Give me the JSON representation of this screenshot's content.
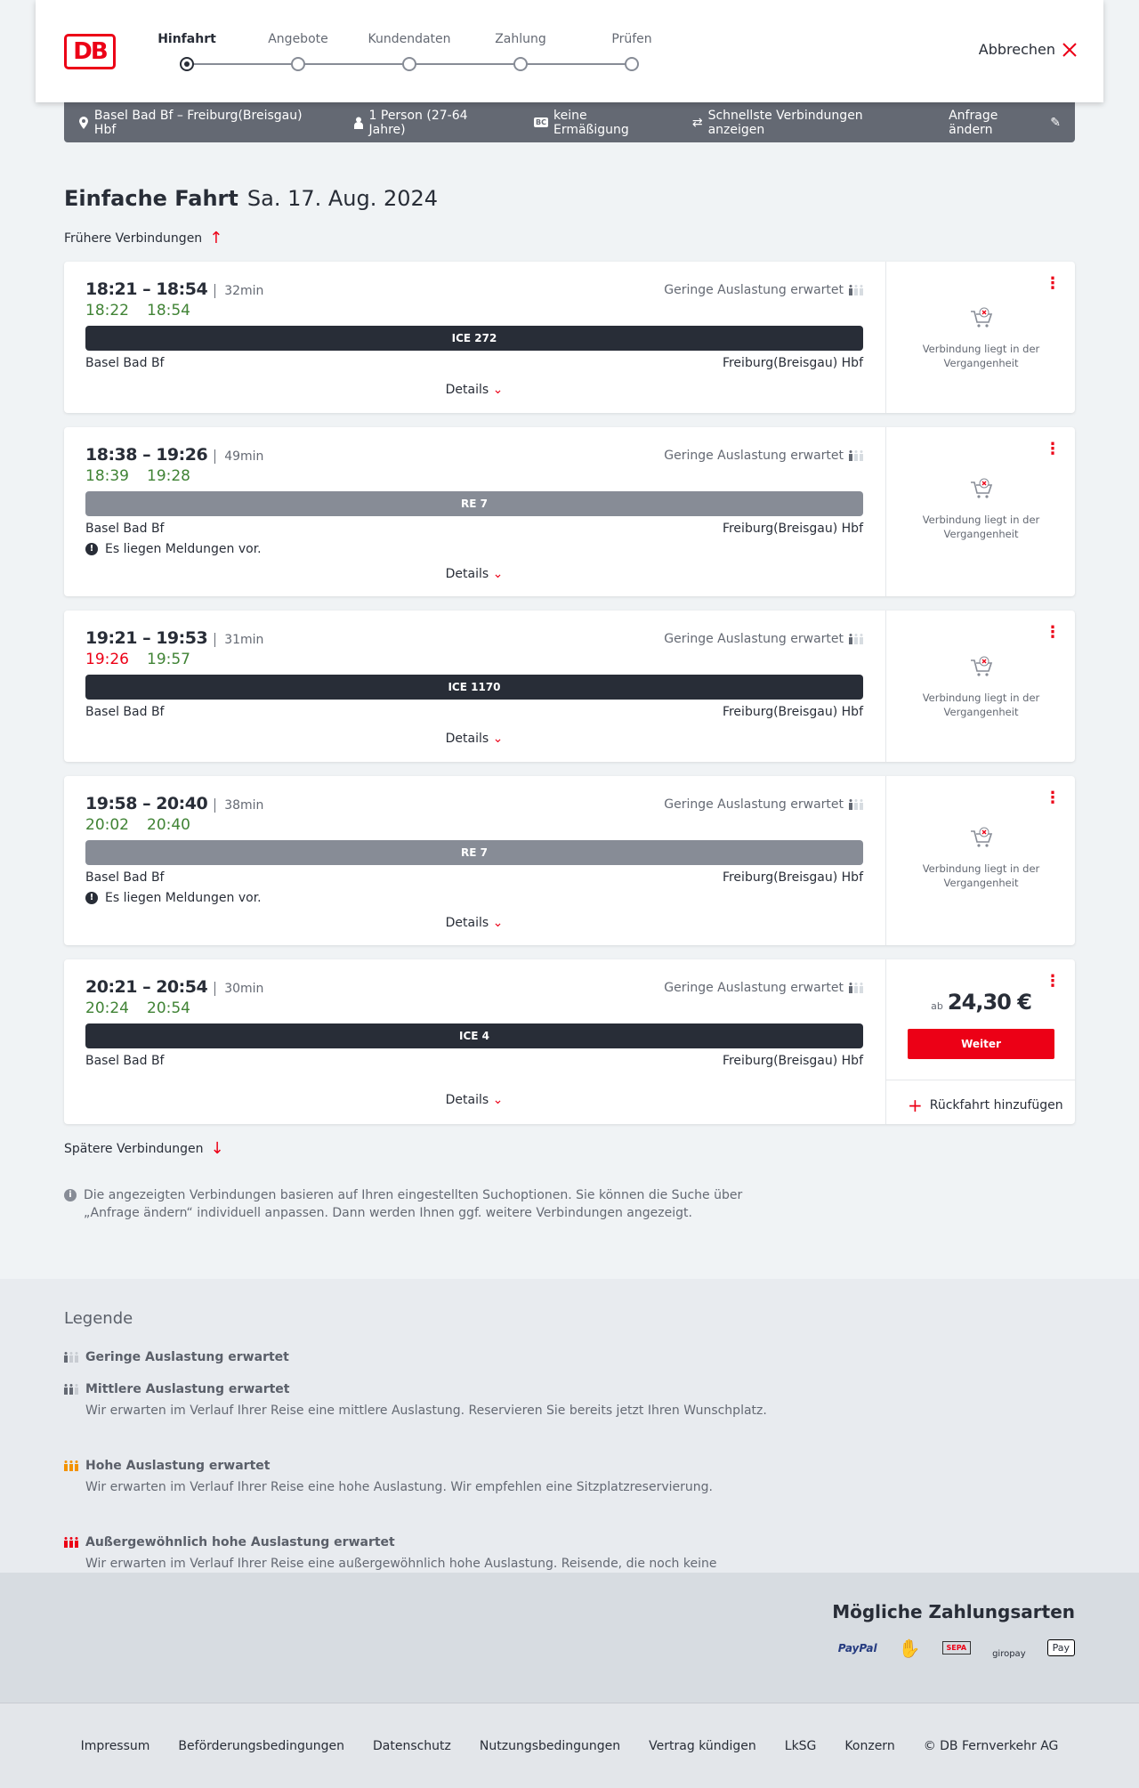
{
  "header": {
    "logo": "DB",
    "steps": [
      "Hinfahrt",
      "Angebote",
      "Kundendaten",
      "Zahlung",
      "Prüfen"
    ],
    "active_step": 0,
    "cancel": "Abbrechen"
  },
  "search": {
    "route": "Basel Bad Bf – Freiburg(Breisgau) Hbf",
    "passengers": "1 Person (27-64 Jahre)",
    "discount": "keine Ermäßigung",
    "option": "Schnellste Verbindungen anzeigen",
    "edit": "Anfrage ändern"
  },
  "page": {
    "title": "Einfache Fahrt",
    "date": "Sa. 17. Aug. 2024",
    "earlier": "Frühere Verbindungen",
    "later": "Spätere Verbindungen",
    "info": "Die angezeigten Verbindungen basieren auf Ihren eingestellten Suchoptionen. Sie können die Suche über „Anfrage ändern“ individuell anpassen. Dann werden Ihnen ggf. weitere Verbindungen angezeigt."
  },
  "colors": {
    "brand": "#ec0016",
    "ontime": "#408335",
    "ice": "#282d37",
    "regional": "#878c96"
  },
  "connections": [
    {
      "times": "18:21 – 18:54",
      "duration": "32min",
      "rt_dep": "18:22",
      "rt_arr": "18:54",
      "dep_late": false,
      "load": "Geringe Auslastung erwartet",
      "train": "ICE 272",
      "type": "ice",
      "from": "Basel Bad Bf",
      "to": "Freiburg(Breisgau) Hbf",
      "details": "Details",
      "past": "Verbindung liegt in der Vergangenheit"
    },
    {
      "times": "18:38 – 19:26",
      "duration": "49min",
      "rt_dep": "18:39",
      "rt_arr": "19:28",
      "dep_late": false,
      "load": "Geringe Auslastung erwartet",
      "train": "RE 7",
      "type": "regional",
      "from": "Basel Bad Bf",
      "to": "Freiburg(Breisgau) Hbf",
      "message": "Es liegen Meldungen vor.",
      "details": "Details",
      "past": "Verbindung liegt in der Vergangenheit"
    },
    {
      "times": "19:21 – 19:53",
      "duration": "31min",
      "rt_dep": "19:26",
      "rt_arr": "19:57",
      "dep_late": true,
      "load": "Geringe Auslastung erwartet",
      "train": "ICE 1170",
      "type": "ice",
      "from": "Basel Bad Bf",
      "to": "Freiburg(Breisgau) Hbf",
      "details": "Details",
      "past": "Verbindung liegt in der Vergangenheit"
    },
    {
      "times": "19:58 – 20:40",
      "duration": "38min",
      "rt_dep": "20:02",
      "rt_arr": "20:40",
      "dep_late": false,
      "load": "Geringe Auslastung erwartet",
      "train": "RE 7",
      "type": "regional",
      "from": "Basel Bad Bf",
      "to": "Freiburg(Breisgau) Hbf",
      "message": "Es liegen Meldungen vor.",
      "details": "Details",
      "past": "Verbindung liegt in der Vergangenheit"
    },
    {
      "times": "20:21 – 20:54",
      "duration": "30min",
      "rt_dep": "20:24",
      "rt_arr": "20:54",
      "dep_late": false,
      "load": "Geringe Auslastung erwartet",
      "train": "ICE 4",
      "type": "ice",
      "from": "Basel Bad Bf",
      "to": "Freiburg(Breisgau) Hbf",
      "details": "Details",
      "price_prefix": "ab",
      "price": "24,30 €",
      "button": "Weiter",
      "return": "Rückfahrt hinzufügen"
    }
  ],
  "legend": {
    "title": "Legende",
    "items": [
      {
        "title": "Geringe Auslastung erwartet",
        "icon": "load-low-icon"
      },
      {
        "title": "Mittlere Auslastung erwartet",
        "desc": "Wir erwarten im Verlauf Ihrer Reise eine mittlere Auslastung. Reservieren Sie bereits jetzt Ihren Wunschplatz.",
        "icon": "load-medium-icon"
      },
      {
        "title": "Hohe Auslastung erwartet",
        "desc": "Wir erwarten im Verlauf Ihrer Reise eine hohe Auslastung. Wir empfehlen eine Sitzplatzreservierung.",
        "icon": "load-high-icon"
      },
      {
        "title": "Außergewöhnlich hohe Auslastung erwartet",
        "desc": "Wir erwarten im Verlauf Ihrer Reise eine außergewöhnlich hohe Auslastung. Reisende, die noch keine Fahrkarte gekauft haben, wählen bitte eine andere Verbindung.",
        "icon": "load-extreme-icon"
      }
    ]
  },
  "payment": {
    "title": "Mögliche Zahlungsarten",
    "methods": [
      "PayPal",
      "Kreditkarte",
      "SEPA",
      "giropay",
      "Apple Pay"
    ]
  },
  "footer": {
    "links": [
      "Impressum",
      "Beförderungsbedingungen",
      "Datenschutz",
      "Nutzungsbedingungen",
      "Vertrag kündigen",
      "LkSG",
      "Konzern",
      "© DB Fernverkehr AG"
    ]
  }
}
